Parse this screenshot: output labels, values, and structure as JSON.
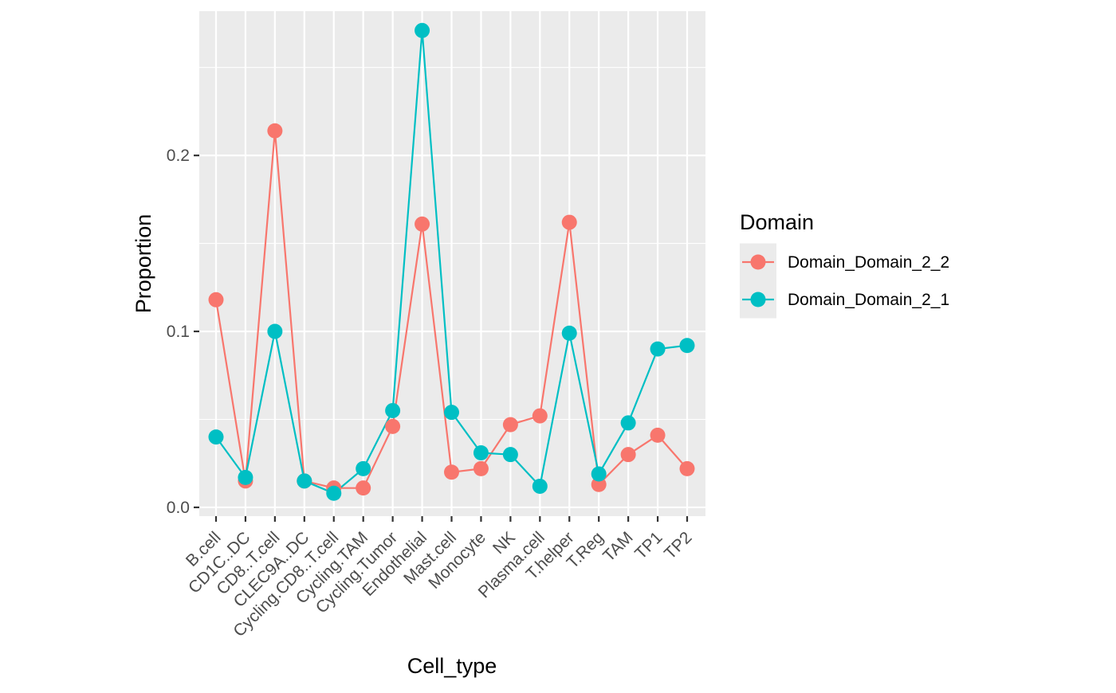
{
  "chart_data": {
    "type": "line",
    "xlabel": "Cell_type",
    "ylabel": "Proportion",
    "ylim": [
      -0.005,
      0.282
    ],
    "yticks": [
      0.0,
      0.1,
      0.2
    ],
    "ytick_labels": [
      "0.0",
      "0.1",
      "0.2"
    ],
    "grid": true,
    "legend_position": "right",
    "categories": [
      "B.cell",
      "CD1C..DC",
      "CD8..T.cell",
      "CLEC9A..DC",
      "Cycling.CD8..T.cell",
      "Cycling.TAM",
      "Cycling.Tumor",
      "Endothelial",
      "Mast.cell",
      "Monocyte",
      "NK",
      "Plasma.cell",
      "T.helper",
      "T.Reg",
      "TAM",
      "TP1",
      "TP2"
    ],
    "legend_title": "Domain",
    "series": [
      {
        "name": "Domain_Domain_2_2",
        "color": "#F8766D",
        "values": [
          0.118,
          0.015,
          0.214,
          0.015,
          0.011,
          0.011,
          0.046,
          0.161,
          0.02,
          0.022,
          0.047,
          0.052,
          0.162,
          0.013,
          0.03,
          0.041,
          0.022
        ]
      },
      {
        "name": "Domain_Domain_2_1",
        "color": "#00BFC4",
        "values": [
          0.04,
          0.017,
          0.1,
          0.015,
          0.008,
          0.022,
          0.055,
          0.271,
          0.054,
          0.031,
          0.03,
          0.012,
          0.099,
          0.019,
          0.048,
          0.09,
          0.092
        ]
      }
    ]
  }
}
